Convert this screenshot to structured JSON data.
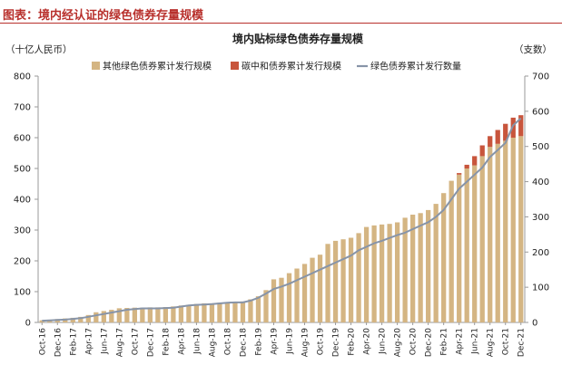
{
  "figure": {
    "caption": "图表：境内经认证的绿色债券存量规模"
  },
  "colors": {
    "caption": "#b8302c",
    "bar_other": "#d4b583",
    "bar_carbon": "#c8553c",
    "line": "#8794a8",
    "axis": "#9a9a9a",
    "text": "#222222"
  },
  "chart_data": {
    "type": "bar",
    "title": "境内贴标绿色债券存量规模",
    "y_left_unit": "（十亿人民币）",
    "y_right_unit": "（支数）",
    "ylim_left": [
      0,
      800
    ],
    "ylim_right": [
      0,
      700
    ],
    "yticks_left": [
      "0",
      "100",
      "200",
      "300",
      "400",
      "500",
      "600",
      "700",
      "800"
    ],
    "yticks_right": [
      "0",
      "100",
      "200",
      "300",
      "400",
      "500",
      "600",
      "700"
    ],
    "grid": false,
    "legend_position": "top",
    "legend": [
      {
        "name": "其他绿色债券累计发行规模",
        "kind": "bar",
        "color": "#d4b583"
      },
      {
        "name": "碳中和债券累计发行规模",
        "kind": "bar",
        "color": "#c8553c"
      },
      {
        "name": "绿色债券累计发行数量",
        "kind": "line",
        "color": "#8794a8"
      }
    ],
    "xtick_labels": [
      "Oct-16",
      "Dec-16",
      "Feb-17",
      "Apr-17",
      "Jun-17",
      "Aug-17",
      "Oct-17",
      "Dec-17",
      "Feb-18",
      "Apr-18",
      "Jun-18",
      "Aug-18",
      "Oct-18",
      "Dec-18",
      "Feb-19",
      "Apr-19",
      "Jun-19",
      "Aug-19",
      "Oct-19",
      "Dec-19",
      "Feb-20",
      "Apr-20",
      "Jun-20",
      "Aug-20",
      "Oct-20",
      "Dec-20",
      "Feb-21",
      "Apr-21",
      "Jun-21",
      "Aug-21",
      "Oct-21",
      "Dec-21"
    ],
    "categories": [
      "Oct-16",
      "Nov-16",
      "Dec-16",
      "Jan-17",
      "Feb-17",
      "Mar-17",
      "Apr-17",
      "May-17",
      "Jun-17",
      "Jul-17",
      "Aug-17",
      "Sep-17",
      "Oct-17",
      "Nov-17",
      "Dec-17",
      "Jan-18",
      "Feb-18",
      "Mar-18",
      "Apr-18",
      "May-18",
      "Jun-18",
      "Jul-18",
      "Aug-18",
      "Sep-18",
      "Oct-18",
      "Nov-18",
      "Dec-18",
      "Jan-19",
      "Feb-19",
      "Mar-19",
      "Apr-19",
      "May-19",
      "Jun-19",
      "Jul-19",
      "Aug-19",
      "Sep-19",
      "Oct-19",
      "Nov-19",
      "Dec-19",
      "Jan-20",
      "Feb-20",
      "Mar-20",
      "Apr-20",
      "May-20",
      "Jun-20",
      "Jul-20",
      "Aug-20",
      "Sep-20",
      "Oct-20",
      "Nov-20",
      "Dec-20",
      "Jan-21",
      "Feb-21",
      "Mar-21",
      "Apr-21",
      "May-21",
      "Jun-21",
      "Jul-21",
      "Aug-21",
      "Sep-21",
      "Oct-21",
      "Nov-21",
      "Dec-21"
    ],
    "series": [
      {
        "name": "其他绿色债券累计发行规模",
        "axis": "left",
        "values": [
          7,
          9,
          11,
          13,
          15,
          18,
          24,
          33,
          37,
          41,
          46,
          47,
          48,
          48,
          49,
          49,
          50,
          52,
          55,
          57,
          60,
          62,
          62,
          64,
          65,
          66,
          68,
          75,
          85,
          105,
          140,
          145,
          160,
          175,
          190,
          210,
          220,
          255,
          265,
          270,
          275,
          290,
          310,
          315,
          318,
          320,
          325,
          340,
          350,
          355,
          365,
          385,
          420,
          460,
          480,
          500,
          510,
          540,
          570,
          580,
          590,
          600,
          605
        ]
      },
      {
        "name": "碳中和债券累计发行规模",
        "axis": "left",
        "values": [
          0,
          0,
          0,
          0,
          0,
          0,
          0,
          0,
          0,
          0,
          0,
          0,
          0,
          0,
          0,
          0,
          0,
          0,
          0,
          0,
          0,
          0,
          0,
          0,
          0,
          0,
          0,
          0,
          0,
          0,
          0,
          0,
          0,
          0,
          0,
          0,
          0,
          0,
          0,
          0,
          0,
          0,
          0,
          0,
          0,
          0,
          0,
          0,
          0,
          0,
          0,
          0,
          0,
          0,
          5,
          12,
          30,
          35,
          35,
          45,
          55,
          65,
          68
        ]
      },
      {
        "name": "绿色债券累计发行数量",
        "axis": "right",
        "values": [
          5,
          6,
          7,
          8,
          10,
          12,
          16,
          20,
          24,
          28,
          32,
          36,
          38,
          40,
          40,
          40,
          41,
          42,
          45,
          48,
          50,
          51,
          52,
          54,
          56,
          57,
          57,
          62,
          70,
          82,
          95,
          102,
          110,
          120,
          130,
          140,
          150,
          160,
          170,
          180,
          190,
          205,
          215,
          225,
          232,
          240,
          248,
          255,
          265,
          275,
          285,
          300,
          320,
          350,
          380,
          400,
          420,
          440,
          470,
          490,
          510,
          560,
          580
        ]
      }
    ]
  }
}
